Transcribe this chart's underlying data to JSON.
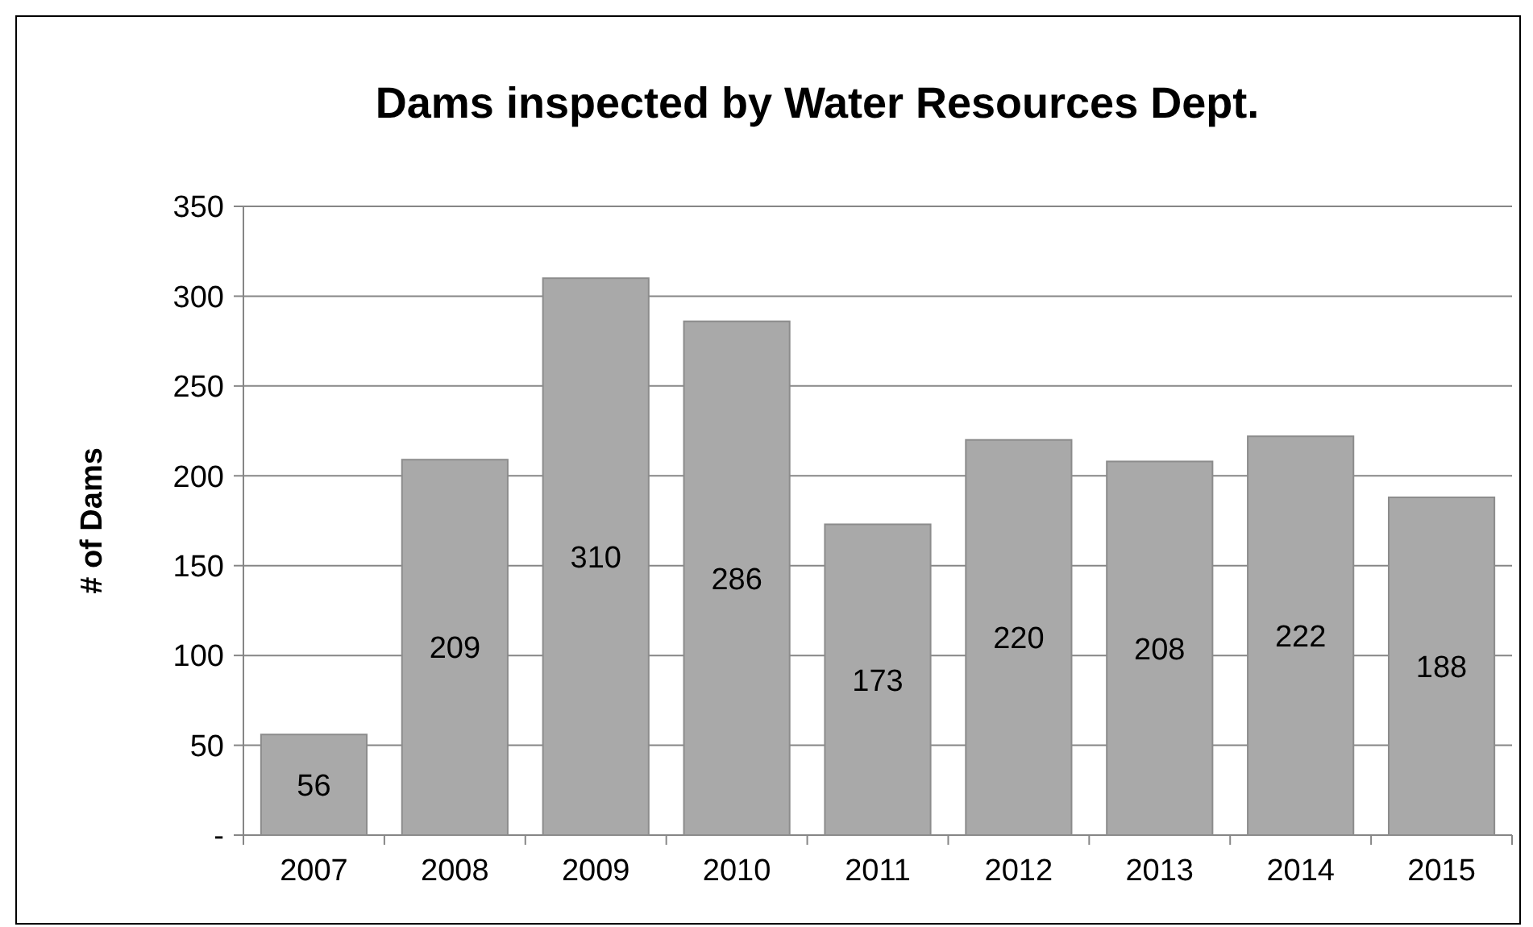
{
  "chart_data": {
    "type": "bar",
    "title": "Dams inspected by Water Resources Dept.",
    "ylabel": "# of Dams",
    "categories": [
      "2007",
      "2008",
      "2009",
      "2010",
      "2011",
      "2012",
      "2013",
      "2014",
      "2015"
    ],
    "values": [
      56,
      209,
      310,
      286,
      173,
      220,
      208,
      222,
      188
    ],
    "color": "#a9a9a9",
    "ylim": [
      0,
      350
    ],
    "yticks": [
      {
        "value": 0,
        "label": "-"
      },
      50,
      100,
      150,
      200,
      250,
      300,
      350
    ],
    "grid": "y",
    "data_labels": true
  }
}
